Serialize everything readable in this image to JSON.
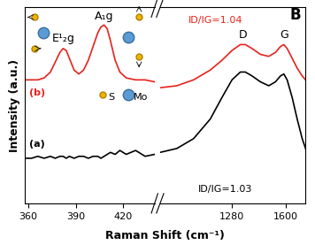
{
  "chart_data": [
    {
      "type": "line",
      "x": [
        358,
        362,
        366,
        370,
        374,
        377,
        380,
        382,
        384,
        386,
        389,
        392,
        395,
        398,
        401,
        404,
        406,
        408,
        410,
        412,
        415,
        418,
        422,
        428,
        434,
        440
      ],
      "xlim": [
        358,
        440
      ],
      "xticks": [
        360,
        390,
        420
      ],
      "ylim": [
        0,
        10
      ],
      "tick_labels": "x",
      "y_label": "Intensity (a.u.)",
      "x_label": "Raman Shift (cm⁻¹)",
      "series": [
        {
          "name": "(a)",
          "color": "#000000",
          "values": [
            2.3,
            2.3,
            2.4,
            2.3,
            2.4,
            2.3,
            2.4,
            2.4,
            2.3,
            2.4,
            2.3,
            2.4,
            2.4,
            2.3,
            2.4,
            2.4,
            2.3,
            2.4,
            2.5,
            2.6,
            2.5,
            2.7,
            2.5,
            2.7,
            2.4,
            2.5
          ]
        },
        {
          "name": "(b)",
          "color": "#e8221b",
          "values": [
            6.3,
            6.3,
            6.3,
            6.4,
            6.7,
            7.2,
            7.7,
            7.9,
            7.8,
            7.4,
            6.8,
            6.6,
            6.8,
            7.3,
            8.0,
            8.7,
            9.0,
            9.1,
            8.9,
            8.3,
            7.3,
            6.7,
            6.4,
            6.3,
            6.3,
            6.2
          ]
        }
      ],
      "annotations": [
        {
          "text": "E¹₂g",
          "color": "#000000"
        },
        {
          "text": "A₁g",
          "color": "#000000"
        },
        {
          "text": "S",
          "color": "#000000"
        },
        {
          "text": "Mo",
          "color": "#000000"
        }
      ]
    },
    {
      "type": "line",
      "x": [
        850,
        950,
        1050,
        1150,
        1220,
        1280,
        1330,
        1360,
        1400,
        1450,
        1500,
        1540,
        1570,
        1590,
        1610,
        1640,
        1670,
        1700,
        1720
      ],
      "xlim": [
        850,
        1720
      ],
      "xticks": [
        1280,
        1600
      ],
      "ylim": [
        0,
        10
      ],
      "tick_labels": "x",
      "series": [
        {
          "color": "#000000",
          "values": [
            2.6,
            2.8,
            3.3,
            4.3,
            5.4,
            6.3,
            6.7,
            6.7,
            6.5,
            6.2,
            6.0,
            6.2,
            6.5,
            6.6,
            6.3,
            5.4,
            4.3,
            3.3,
            2.8
          ]
        },
        {
          "color": "#e8221b",
          "values": [
            5.9,
            6.0,
            6.3,
            6.8,
            7.3,
            7.8,
            8.1,
            8.1,
            7.9,
            7.6,
            7.5,
            7.7,
            8.0,
            8.1,
            7.9,
            7.4,
            6.9,
            6.5,
            6.3
          ]
        }
      ],
      "annotations": [
        {
          "text": "D",
          "color": "#000000"
        },
        {
          "text": "G",
          "color": "#000000"
        },
        {
          "text": "ID/IG=1.04",
          "color": "#e8221b"
        },
        {
          "text": "ID/IG=1.03",
          "color": "#000000"
        },
        {
          "text": "B",
          "color": "#000000"
        }
      ]
    }
  ]
}
